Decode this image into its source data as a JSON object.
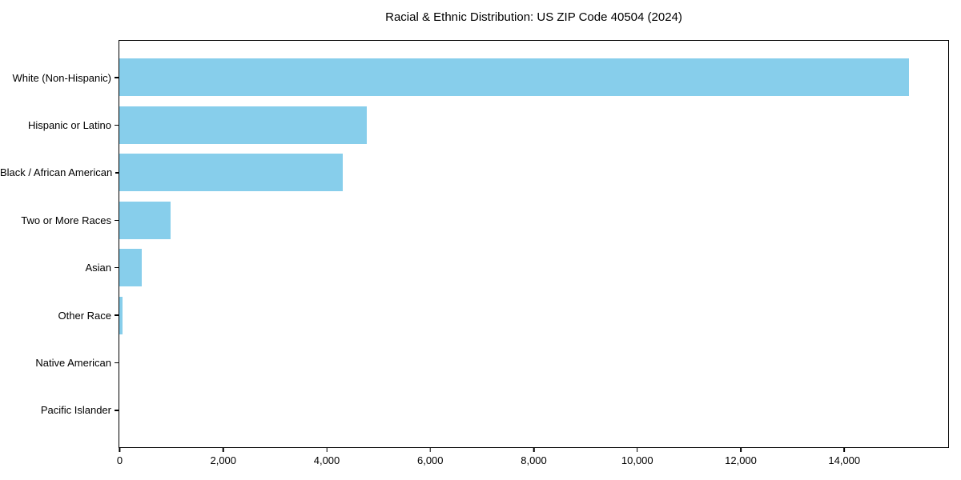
{
  "figure": {
    "title": "Racial & Ethnic Distribution: US ZIP Code 40504 (2024)"
  },
  "chart_data": {
    "type": "bar",
    "orientation": "horizontal",
    "title": "Racial & Ethnic Distribution: US ZIP Code 40504 (2024)",
    "categories": [
      "White (Non-Hispanic)",
      "Hispanic or Latino",
      "Black / African American",
      "Two or More Races",
      "Asian",
      "Other Race",
      "Native American",
      "Pacific Islander"
    ],
    "values": [
      15250,
      4770,
      4310,
      990,
      430,
      65,
      0,
      0
    ],
    "xlabel": "",
    "ylabel": "",
    "xlim": [
      0,
      16000
    ],
    "xticks": {
      "values": [
        0,
        2000,
        4000,
        6000,
        8000,
        10000,
        12000,
        14000
      ],
      "labels": [
        "0",
        "2,000",
        "4,000",
        "6,000",
        "8,000",
        "10,000",
        "12,000",
        "14,000"
      ]
    },
    "grid": false,
    "legend_position": "none",
    "colors": {
      "bar": "#87CEEB",
      "spine": "#000000",
      "text": "#000000",
      "background": "#ffffff"
    }
  }
}
